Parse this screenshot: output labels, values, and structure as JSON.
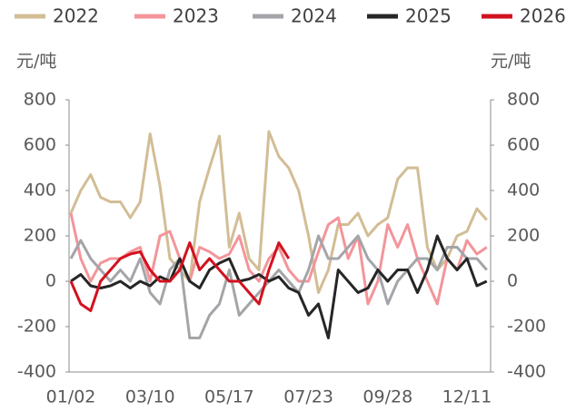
{
  "chart_data": {
    "type": "line",
    "y_label": "元/吨",
    "y2_label": "元/吨",
    "categories": [
      "01/02",
      null,
      null,
      null,
      null,
      null,
      null,
      null,
      "03/10",
      null,
      null,
      null,
      null,
      null,
      null,
      null,
      "05/17",
      null,
      null,
      null,
      null,
      null,
      null,
      null,
      "07/23",
      null,
      null,
      null,
      null,
      null,
      null,
      null,
      "09/28",
      null,
      null,
      null,
      null,
      null,
      null,
      null,
      "12/11",
      null,
      null
    ],
    "series": [
      {
        "name": "2022",
        "color": "#d2bd95",
        "values": [
          300,
          400,
          470,
          370,
          350,
          350,
          280,
          350,
          650,
          420,
          100,
          50,
          0,
          350,
          500,
          640,
          150,
          300,
          100,
          50,
          660,
          550,
          500,
          400,
          200,
          -50,
          50,
          250,
          250,
          300,
          200,
          250,
          280,
          450,
          500,
          500,
          150,
          50,
          100,
          200,
          220,
          320,
          270
        ]
      },
      {
        "name": "2023",
        "color": "#f3959a",
        "values": [
          300,
          100,
          0,
          80,
          100,
          100,
          130,
          150,
          0,
          200,
          220,
          100,
          0,
          150,
          130,
          100,
          120,
          200,
          50,
          0,
          100,
          150,
          50,
          0,
          0,
          130,
          250,
          280,
          100,
          200,
          -100,
          0,
          250,
          150,
          250,
          100,
          0,
          -100,
          100,
          50,
          180,
          120,
          150
        ]
      },
      {
        "name": "2024",
        "color": "#a3a5a9",
        "values": [
          100,
          180,
          100,
          50,
          0,
          50,
          0,
          100,
          -50,
          -100,
          50,
          100,
          -250,
          -250,
          -150,
          -100,
          50,
          -150,
          -100,
          -50,
          0,
          50,
          0,
          -50,
          50,
          200,
          100,
          100,
          150,
          200,
          100,
          50,
          -100,
          0,
          50,
          100,
          100,
          50,
          150,
          150,
          100,
          100,
          50
        ]
      },
      {
        "name": "2025",
        "color": "#262626",
        "values": [
          0,
          30,
          -20,
          -30,
          -20,
          0,
          -30,
          0,
          -20,
          20,
          0,
          100,
          0,
          -30,
          50,
          80,
          100,
          0,
          10,
          30,
          0,
          20,
          -30,
          -50,
          -150,
          -100,
          -250,
          50,
          0,
          -50,
          -30,
          50,
          0,
          50,
          50,
          -50,
          50,
          200,
          100,
          50,
          100,
          -20,
          0
        ]
      },
      {
        "name": "2026",
        "color": "#d2121f",
        "values": [
          0,
          -100,
          -130,
          0,
          50,
          100,
          120,
          130,
          50,
          0,
          0,
          50,
          170,
          50,
          100,
          50,
          0,
          0,
          -50,
          -100,
          50,
          170,
          100,
          null,
          null,
          null,
          null,
          null,
          null,
          null,
          null,
          null,
          null,
          null,
          null,
          null,
          null,
          null,
          null,
          null,
          null,
          null,
          null
        ]
      }
    ],
    "ylim": [
      -400,
      800
    ],
    "yticks": [
      -400,
      -200,
      0,
      200,
      400,
      600,
      800
    ],
    "y2lim": [
      -400,
      800
    ],
    "y2ticks": [
      -400,
      -200,
      0,
      200,
      400,
      600,
      800
    ],
    "grid": false,
    "legend": "top"
  }
}
